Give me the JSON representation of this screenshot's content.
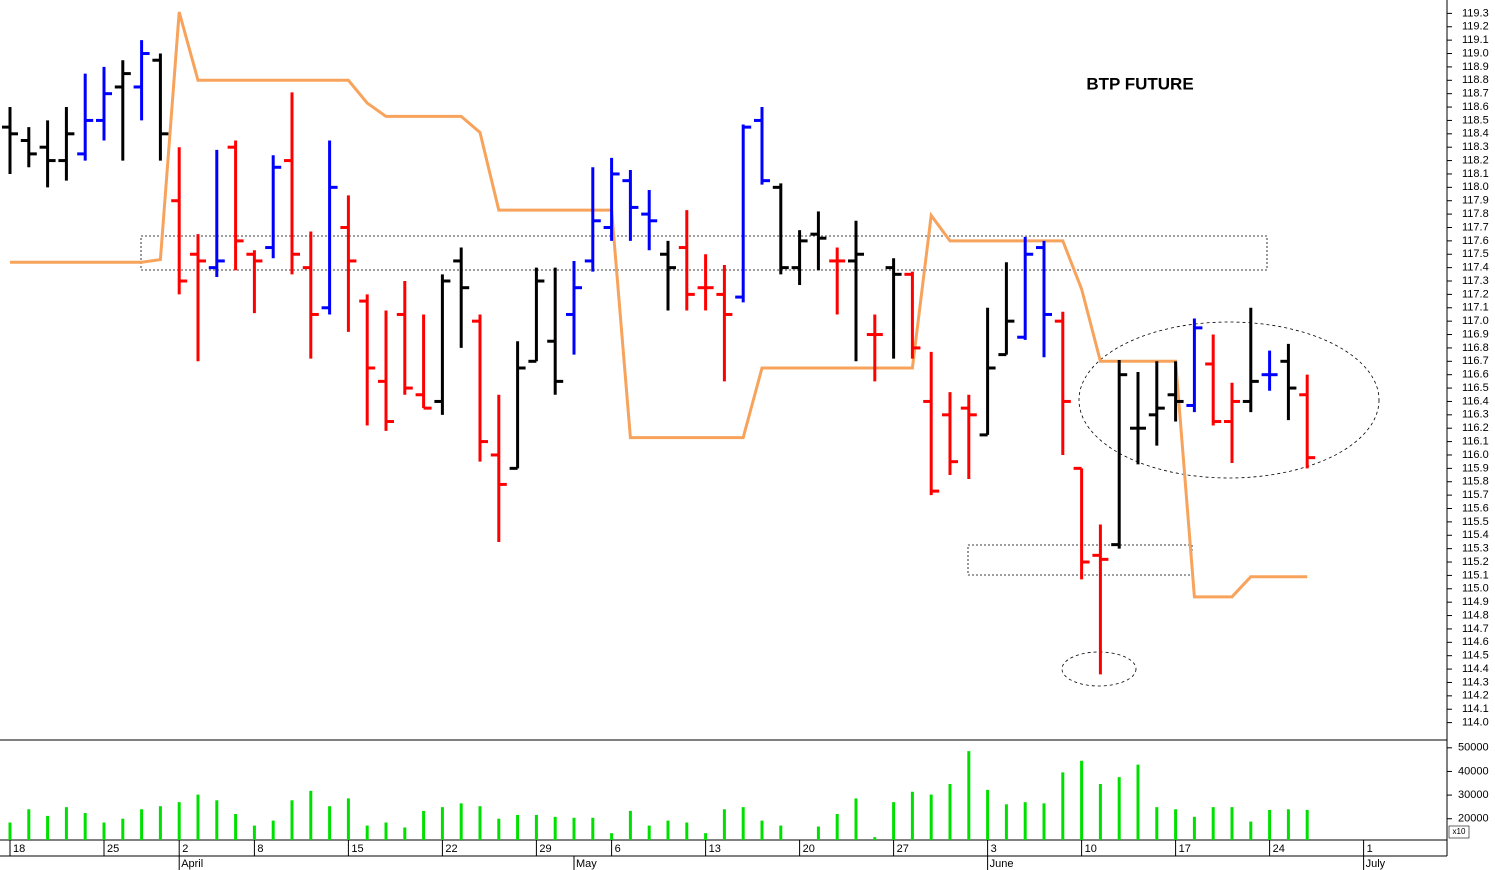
{
  "chart_data": {
    "type": "ohlc",
    "title": "BTP FUTURE",
    "categories": [
      "18",
      null,
      null,
      null,
      null,
      "25",
      null,
      null,
      null,
      "2",
      null,
      null,
      null,
      "8",
      null,
      null,
      null,
      null,
      "15",
      null,
      null,
      null,
      null,
      "22",
      null,
      null,
      null,
      null,
      "29",
      null,
      null,
      null,
      "6",
      null,
      null,
      null,
      null,
      "13",
      null,
      null,
      null,
      null,
      "20",
      null,
      null,
      null,
      null,
      "27",
      null,
      null,
      null,
      null,
      "3",
      null,
      null,
      null,
      null,
      "10",
      null,
      null,
      null,
      null,
      "17",
      null,
      null,
      null,
      null,
      "24",
      null,
      null,
      null,
      null,
      "1"
    ],
    "months": [
      null,
      null,
      null,
      null,
      null,
      null,
      null,
      null,
      null,
      "April",
      null,
      null,
      null,
      null,
      null,
      null,
      null,
      null,
      null,
      null,
      null,
      null,
      null,
      null,
      null,
      null,
      null,
      null,
      null,
      null,
      "May",
      null,
      null,
      null,
      null,
      null,
      null,
      null,
      null,
      null,
      null,
      null,
      null,
      null,
      null,
      null,
      null,
      null,
      null,
      null,
      null,
      null,
      "June",
      null,
      null,
      null,
      null,
      null,
      null,
      null,
      null,
      null,
      null,
      null,
      null,
      null,
      null,
      null,
      null,
      null,
      null,
      null,
      "July"
    ],
    "open": [
      118.45,
      118.35,
      118.3,
      118.2,
      118.25,
      118.5,
      118.75,
      118.75,
      118.95,
      117.9,
      117.5,
      117.4,
      118.3,
      117.5,
      117.55,
      118.2,
      117.4,
      117.1,
      117.7,
      117.15,
      116.55,
      117.05,
      116.45,
      116.4,
      117.45,
      117.0,
      116.0,
      115.9,
      116.7,
      116.85,
      117.05,
      117.45,
      117.7,
      118.05,
      117.8,
      117.5,
      117.55,
      117.25,
      117.2,
      117.18,
      118.5,
      118.0,
      117.4,
      117.65,
      117.45,
      117.45,
      116.9,
      117.4,
      117.35,
      116.4,
      116.3,
      116.35,
      116.15,
      116.75,
      116.88,
      117.55,
      117.0,
      115.9,
      115.25,
      115.33,
      116.2,
      116.3,
      116.45,
      116.37,
      116.68,
      116.25,
      116.4,
      116.6,
      116.7,
      116.45,
      null,
      null,
      null
    ],
    "high": [
      118.6,
      118.45,
      118.5,
      118.6,
      118.85,
      118.9,
      118.95,
      119.1,
      119.0,
      118.3,
      117.65,
      118.28,
      118.35,
      117.53,
      118.24,
      118.71,
      117.67,
      118.35,
      117.94,
      117.2,
      117.08,
      117.3,
      117.05,
      117.35,
      117.55,
      117.05,
      116.45,
      116.85,
      117.4,
      117.4,
      117.45,
      118.15,
      118.22,
      118.13,
      117.98,
      117.6,
      117.83,
      117.5,
      117.42,
      118.47,
      118.6,
      118.03,
      117.68,
      117.82,
      117.55,
      117.75,
      117.05,
      117.47,
      117.37,
      116.77,
      116.47,
      116.45,
      117.1,
      117.44,
      117.63,
      117.6,
      117.07,
      115.9,
      115.48,
      116.71,
      116.62,
      116.7,
      116.7,
      117.02,
      116.9,
      116.54,
      117.1,
      116.78,
      116.83,
      116.6,
      null,
      null,
      null
    ],
    "low": [
      118.1,
      118.15,
      118.0,
      118.05,
      118.2,
      118.35,
      118.2,
      118.5,
      118.2,
      117.2,
      116.7,
      117.33,
      117.38,
      117.06,
      117.47,
      117.35,
      116.72,
      117.05,
      116.92,
      116.22,
      116.18,
      116.45,
      116.35,
      116.3,
      116.8,
      115.95,
      115.35,
      115.9,
      116.7,
      116.45,
      116.75,
      117.37,
      117.6,
      117.6,
      117.53,
      117.08,
      117.08,
      117.08,
      116.55,
      117.14,
      118.02,
      117.35,
      117.27,
      117.38,
      117.05,
      116.7,
      116.55,
      116.72,
      116.72,
      115.7,
      115.85,
      115.82,
      116.15,
      116.75,
      116.86,
      116.73,
      116.0,
      115.07,
      114.36,
      115.3,
      115.93,
      116.07,
      116.25,
      116.32,
      116.22,
      115.94,
      116.32,
      116.48,
      116.26,
      115.9,
      null,
      null,
      null
    ],
    "close": [
      118.4,
      118.25,
      118.2,
      118.4,
      118.5,
      118.7,
      118.85,
      119.0,
      118.4,
      117.3,
      117.45,
      117.45,
      117.6,
      117.45,
      118.15,
      117.5,
      117.05,
      118.0,
      117.45,
      116.65,
      116.25,
      116.5,
      116.35,
      117.3,
      117.25,
      116.1,
      115.78,
      116.65,
      117.3,
      116.55,
      117.25,
      117.75,
      118.1,
      117.85,
      117.75,
      117.4,
      117.2,
      117.25,
      117.05,
      118.45,
      118.05,
      117.4,
      117.6,
      117.62,
      117.45,
      117.5,
      116.9,
      117.35,
      116.8,
      115.73,
      115.95,
      116.3,
      116.65,
      117.0,
      117.5,
      117.05,
      116.4,
      115.2,
      115.22,
      116.6,
      116.2,
      116.35,
      116.4,
      116.95,
      116.25,
      116.4,
      116.55,
      116.6,
      116.5,
      115.98,
      null,
      null,
      null
    ],
    "colors": [
      "#000000",
      "#000000",
      "#000000",
      "#000000",
      "#0000ff",
      "#0000ff",
      "#000000",
      "#0000ff",
      "#000000",
      "#ff0000",
      "#ff0000",
      "#0000ff",
      "#ff0000",
      "#ff0000",
      "#0000ff",
      "#ff0000",
      "#ff0000",
      "#0000ff",
      "#ff0000",
      "#ff0000",
      "#ff0000",
      "#ff0000",
      "#ff0000",
      "#000000",
      "#000000",
      "#ff0000",
      "#ff0000",
      "#000000",
      "#000000",
      "#000000",
      "#0000ff",
      "#0000ff",
      "#0000ff",
      "#0000ff",
      "#0000ff",
      "#000000",
      "#ff0000",
      "#ff0000",
      "#ff0000",
      "#0000ff",
      "#0000ff",
      "#000000",
      "#000000",
      "#000000",
      "#ff0000",
      "#000000",
      "#ff0000",
      "#000000",
      "#ff0000",
      "#ff0000",
      "#ff0000",
      "#ff0000",
      "#000000",
      "#000000",
      "#0000ff",
      "#0000ff",
      "#ff0000",
      "#ff0000",
      "#ff0000",
      "#000000",
      "#000000",
      "#000000",
      "#000000",
      "#0000ff",
      "#ff0000",
      "#ff0000",
      "#000000",
      "#0000ff",
      "#000000",
      "#ff0000",
      null,
      null,
      null
    ],
    "overlay": {
      "color": "#f7a35c",
      "values": [
        117.44,
        117.44,
        117.44,
        117.44,
        117.44,
        117.44,
        117.44,
        117.44,
        117.46,
        119.31,
        118.8,
        118.8,
        118.8,
        118.8,
        118.8,
        118.8,
        118.8,
        118.8,
        118.8,
        118.63,
        118.53,
        118.53,
        118.53,
        118.53,
        118.53,
        118.41,
        117.83,
        117.83,
        117.83,
        117.83,
        117.83,
        117.83,
        117.83,
        116.13,
        116.13,
        116.13,
        116.13,
        116.13,
        116.13,
        116.13,
        116.65,
        116.65,
        116.65,
        116.65,
        116.65,
        116.65,
        116.65,
        116.65,
        116.65,
        117.79,
        117.6,
        117.6,
        117.6,
        117.6,
        117.6,
        117.6,
        117.6,
        117.24,
        116.7,
        116.7,
        116.7,
        116.7,
        116.7,
        114.94,
        114.94,
        114.94,
        115.09,
        115.09,
        115.09,
        115.09,
        null,
        null,
        null
      ]
    },
    "ylim": [
      113.87,
      119.4
    ],
    "yticks": [
      {
        "value": 114,
        "label": "114.0"
      },
      114.1,
      114.2,
      114.3,
      114.4,
      114.5,
      114.6,
      114.7,
      114.8,
      114.9,
      {
        "value": 115,
        "label": "115.0"
      },
      115.1,
      115.2,
      115.3,
      115.4,
      115.5,
      115.6,
      115.7,
      115.8,
      115.9,
      {
        "value": 116,
        "label": "116.0"
      },
      116.1,
      116.2,
      116.3,
      116.4,
      116.5,
      116.6,
      116.7,
      116.8,
      116.9,
      {
        "value": 117,
        "label": "117.0"
      },
      117.1,
      117.2,
      117.3,
      117.4,
      117.5,
      117.6,
      117.7,
      117.8,
      117.9,
      {
        "value": 118,
        "label": "118.0"
      },
      118.1,
      118.2,
      118.3,
      118.4,
      118.5,
      118.6,
      118.7,
      118.8,
      118.9,
      {
        "value": 119,
        "label": "119.0"
      },
      119.1,
      119.2,
      119.3
    ],
    "volume": {
      "color": "#00e000",
      "unit_label": "x10",
      "ylim": [
        11000,
        53300
      ],
      "yticks": [
        20000,
        30000,
        40000,
        50000
      ],
      "values": [
        18400,
        24000,
        21200,
        24900,
        22400,
        18400,
        20000,
        24000,
        25300,
        27000,
        30200,
        27800,
        22000,
        17100,
        19200,
        27800,
        31800,
        25300,
        28600,
        17100,
        18400,
        16300,
        23300,
        24900,
        26500,
        25300,
        20000,
        21600,
        21600,
        20800,
        20400,
        20400,
        13900,
        23300,
        17100,
        19200,
        18400,
        13900,
        24000,
        24900,
        19200,
        17100,
        11000,
        16700,
        22000,
        28600,
        12200,
        27000,
        31400,
        30200,
        34700,
        48600,
        32200,
        26100,
        27000,
        26500,
        39600,
        44500,
        34700,
        37600,
        42900,
        24900,
        24000,
        20800,
        24900,
        24900,
        18800,
        23700,
        24000,
        23700,
        null,
        null,
        null
      ]
    }
  }
}
